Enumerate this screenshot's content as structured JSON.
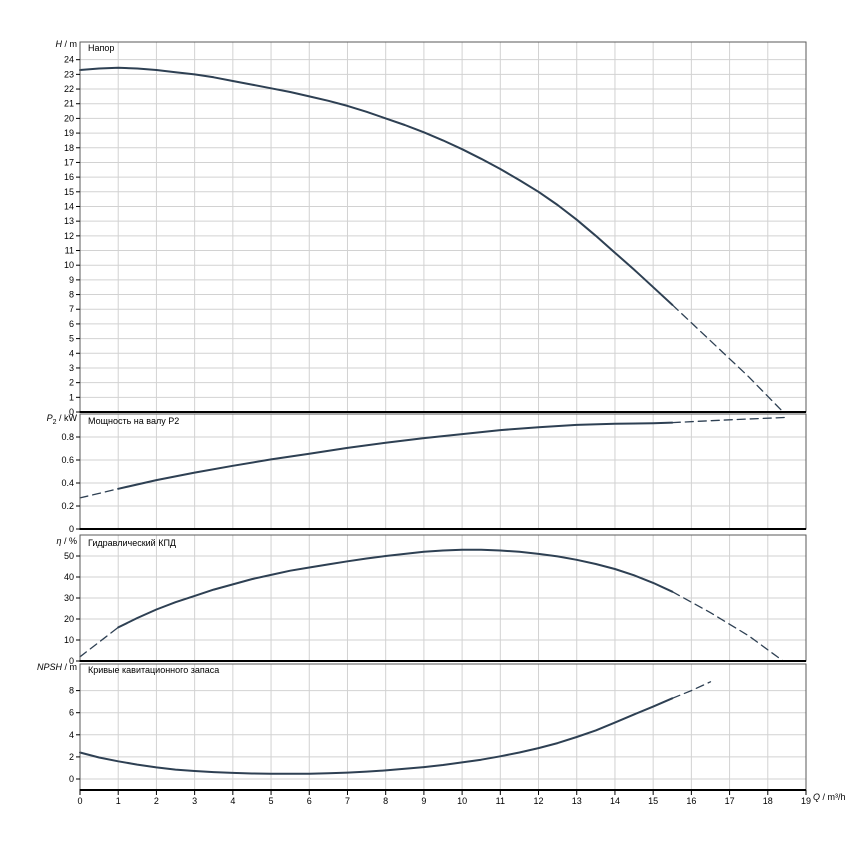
{
  "page": {
    "background": "#ffffff"
  },
  "colors": {
    "curve": "#2e4053",
    "grid": "#d2d2d2",
    "axis": "#000000",
    "border": "#5a5a5a",
    "text": "#000000"
  },
  "chart_data": {
    "type": "line",
    "x": {
      "label_var": "Q",
      "label_rest": " / m³/h",
      "min": 0,
      "max": 19,
      "tick_step": 1
    },
    "panels": [
      {
        "id": "head",
        "title": "Напор",
        "ylabel": {
          "var": "H",
          "rest": " / m"
        },
        "ylim": [
          0,
          25.2
        ],
        "ytick_step": 1,
        "ytick_max": 24,
        "series": [
          {
            "name": "head",
            "style": "solid",
            "points": [
              [
                0,
                23.3
              ],
              [
                0.5,
                23.4
              ],
              [
                1,
                23.45
              ],
              [
                1.5,
                23.4
              ],
              [
                2,
                23.3
              ],
              [
                2.5,
                23.15
              ],
              [
                3,
                23.0
              ],
              [
                3.5,
                22.8
              ],
              [
                4,
                22.55
              ],
              [
                4.5,
                22.3
              ],
              [
                5,
                22.05
              ],
              [
                5.5,
                21.8
              ],
              [
                6,
                21.5
              ],
              [
                6.5,
                21.2
              ],
              [
                7,
                20.85
              ],
              [
                7.5,
                20.45
              ],
              [
                8,
                20.0
              ],
              [
                8.5,
                19.55
              ],
              [
                9,
                19.05
              ],
              [
                9.5,
                18.5
              ],
              [
                10,
                17.9
              ],
              [
                10.5,
                17.25
              ],
              [
                11,
                16.55
              ],
              [
                11.5,
                15.8
              ],
              [
                12,
                15.0
              ],
              [
                12.5,
                14.1
              ],
              [
                13,
                13.1
              ],
              [
                13.5,
                12.0
              ],
              [
                14,
                10.85
              ],
              [
                14.5,
                9.7
              ],
              [
                15,
                8.5
              ],
              [
                15.5,
                7.3
              ]
            ]
          },
          {
            "name": "head-extrapolation",
            "style": "dashed",
            "points": [
              [
                15.5,
                7.3
              ],
              [
                16.5,
                4.85
              ],
              [
                17.5,
                2.4
              ],
              [
                18.4,
                0
              ]
            ]
          }
        ]
      },
      {
        "id": "power",
        "title": "Мощность на валу P2",
        "ylabel": {
          "var": "P",
          "sub": "2",
          "rest": " / kW"
        },
        "ylim": [
          0,
          1.0
        ],
        "ytick_step": 0.2,
        "ytick_max": 0.8,
        "series": [
          {
            "name": "power-extrapolation-low",
            "style": "dashed",
            "points": [
              [
                0,
                0.27
              ],
              [
                0.5,
                0.31
              ],
              [
                1,
                0.35
              ]
            ]
          },
          {
            "name": "power",
            "style": "solid",
            "points": [
              [
                1,
                0.35
              ],
              [
                2,
                0.425
              ],
              [
                3,
                0.49
              ],
              [
                4,
                0.55
              ],
              [
                5,
                0.605
              ],
              [
                6,
                0.655
              ],
              [
                7,
                0.705
              ],
              [
                8,
                0.75
              ],
              [
                9,
                0.79
              ],
              [
                10,
                0.825
              ],
              [
                11,
                0.86
              ],
              [
                12,
                0.885
              ],
              [
                13,
                0.905
              ],
              [
                14,
                0.915
              ],
              [
                15,
                0.92
              ],
              [
                15.5,
                0.925
              ]
            ]
          },
          {
            "name": "power-extrapolation-high",
            "style": "dashed",
            "points": [
              [
                15.5,
                0.925
              ],
              [
                17,
                0.95
              ],
              [
                18.5,
                0.97
              ]
            ]
          }
        ]
      },
      {
        "id": "efficiency",
        "title": "Гидравлический КПД",
        "ylabel": {
          "var": "η",
          "rest": " / %"
        },
        "ylim": [
          0,
          60
        ],
        "ytick_step": 10,
        "ytick_max": 50,
        "series": [
          {
            "name": "efficiency-extrapolation-low",
            "style": "dashed",
            "points": [
              [
                0,
                2
              ],
              [
                0.5,
                9
              ],
              [
                1,
                16
              ]
            ]
          },
          {
            "name": "efficiency",
            "style": "solid",
            "points": [
              [
                1,
                16
              ],
              [
                1.5,
                20.5
              ],
              [
                2,
                24.5
              ],
              [
                2.5,
                28
              ],
              [
                3,
                31
              ],
              [
                3.5,
                34
              ],
              [
                4,
                36.5
              ],
              [
                4.5,
                39
              ],
              [
                5,
                41
              ],
              [
                5.5,
                43
              ],
              [
                6,
                44.5
              ],
              [
                6.5,
                46
              ],
              [
                7,
                47.5
              ],
              [
                7.5,
                48.8
              ],
              [
                8,
                50
              ],
              [
                8.5,
                51
              ],
              [
                9,
                52
              ],
              [
                9.5,
                52.6
              ],
              [
                10,
                53
              ],
              [
                10.5,
                53
              ],
              [
                11,
                52.6
              ],
              [
                11.5,
                52
              ],
              [
                12,
                51
              ],
              [
                12.5,
                49.8
              ],
              [
                13,
                48.2
              ],
              [
                13.5,
                46.2
              ],
              [
                14,
                43.8
              ],
              [
                14.5,
                40.8
              ],
              [
                15,
                37.2
              ],
              [
                15.5,
                33
              ]
            ]
          },
          {
            "name": "efficiency-extrapolation-high",
            "style": "dashed",
            "points": [
              [
                15.5,
                33
              ],
              [
                16.5,
                23
              ],
              [
                17.5,
                12
              ],
              [
                18.4,
                0
              ]
            ]
          }
        ]
      },
      {
        "id": "npsh",
        "title": "Кривые кавитационного запаса",
        "ylabel": {
          "var": "NPSH",
          "rest": " / m"
        },
        "ylim": [
          0,
          10.4
        ],
        "ytick_step": 2,
        "ytick_max": 8,
        "series": [
          {
            "name": "npsh",
            "style": "solid",
            "points": [
              [
                0,
                2.4
              ],
              [
                0.5,
                1.95
              ],
              [
                1,
                1.6
              ],
              [
                1.5,
                1.3
              ],
              [
                2,
                1.05
              ],
              [
                2.5,
                0.85
              ],
              [
                3,
                0.72
              ],
              [
                3.5,
                0.62
              ],
              [
                4,
                0.55
              ],
              [
                4.5,
                0.5
              ],
              [
                5,
                0.48
              ],
              [
                5.5,
                0.47
              ],
              [
                6,
                0.48
              ],
              [
                6.5,
                0.52
              ],
              [
                7,
                0.58
              ],
              [
                7.5,
                0.67
              ],
              [
                8,
                0.78
              ],
              [
                8.5,
                0.92
              ],
              [
                9,
                1.08
              ],
              [
                9.5,
                1.27
              ],
              [
                10,
                1.5
              ],
              [
                10.5,
                1.75
              ],
              [
                11,
                2.05
              ],
              [
                11.5,
                2.4
              ],
              [
                12,
                2.8
              ],
              [
                12.5,
                3.25
              ],
              [
                13,
                3.8
              ],
              [
                13.5,
                4.4
              ],
              [
                14,
                5.1
              ],
              [
                14.5,
                5.85
              ],
              [
                15,
                6.55
              ],
              [
                15.5,
                7.3
              ]
            ]
          },
          {
            "name": "npsh-extrapolation",
            "style": "dashed",
            "points": [
              [
                15.5,
                7.3
              ],
              [
                16,
                8.0
              ],
              [
                16.5,
                8.8
              ]
            ]
          }
        ]
      }
    ]
  }
}
